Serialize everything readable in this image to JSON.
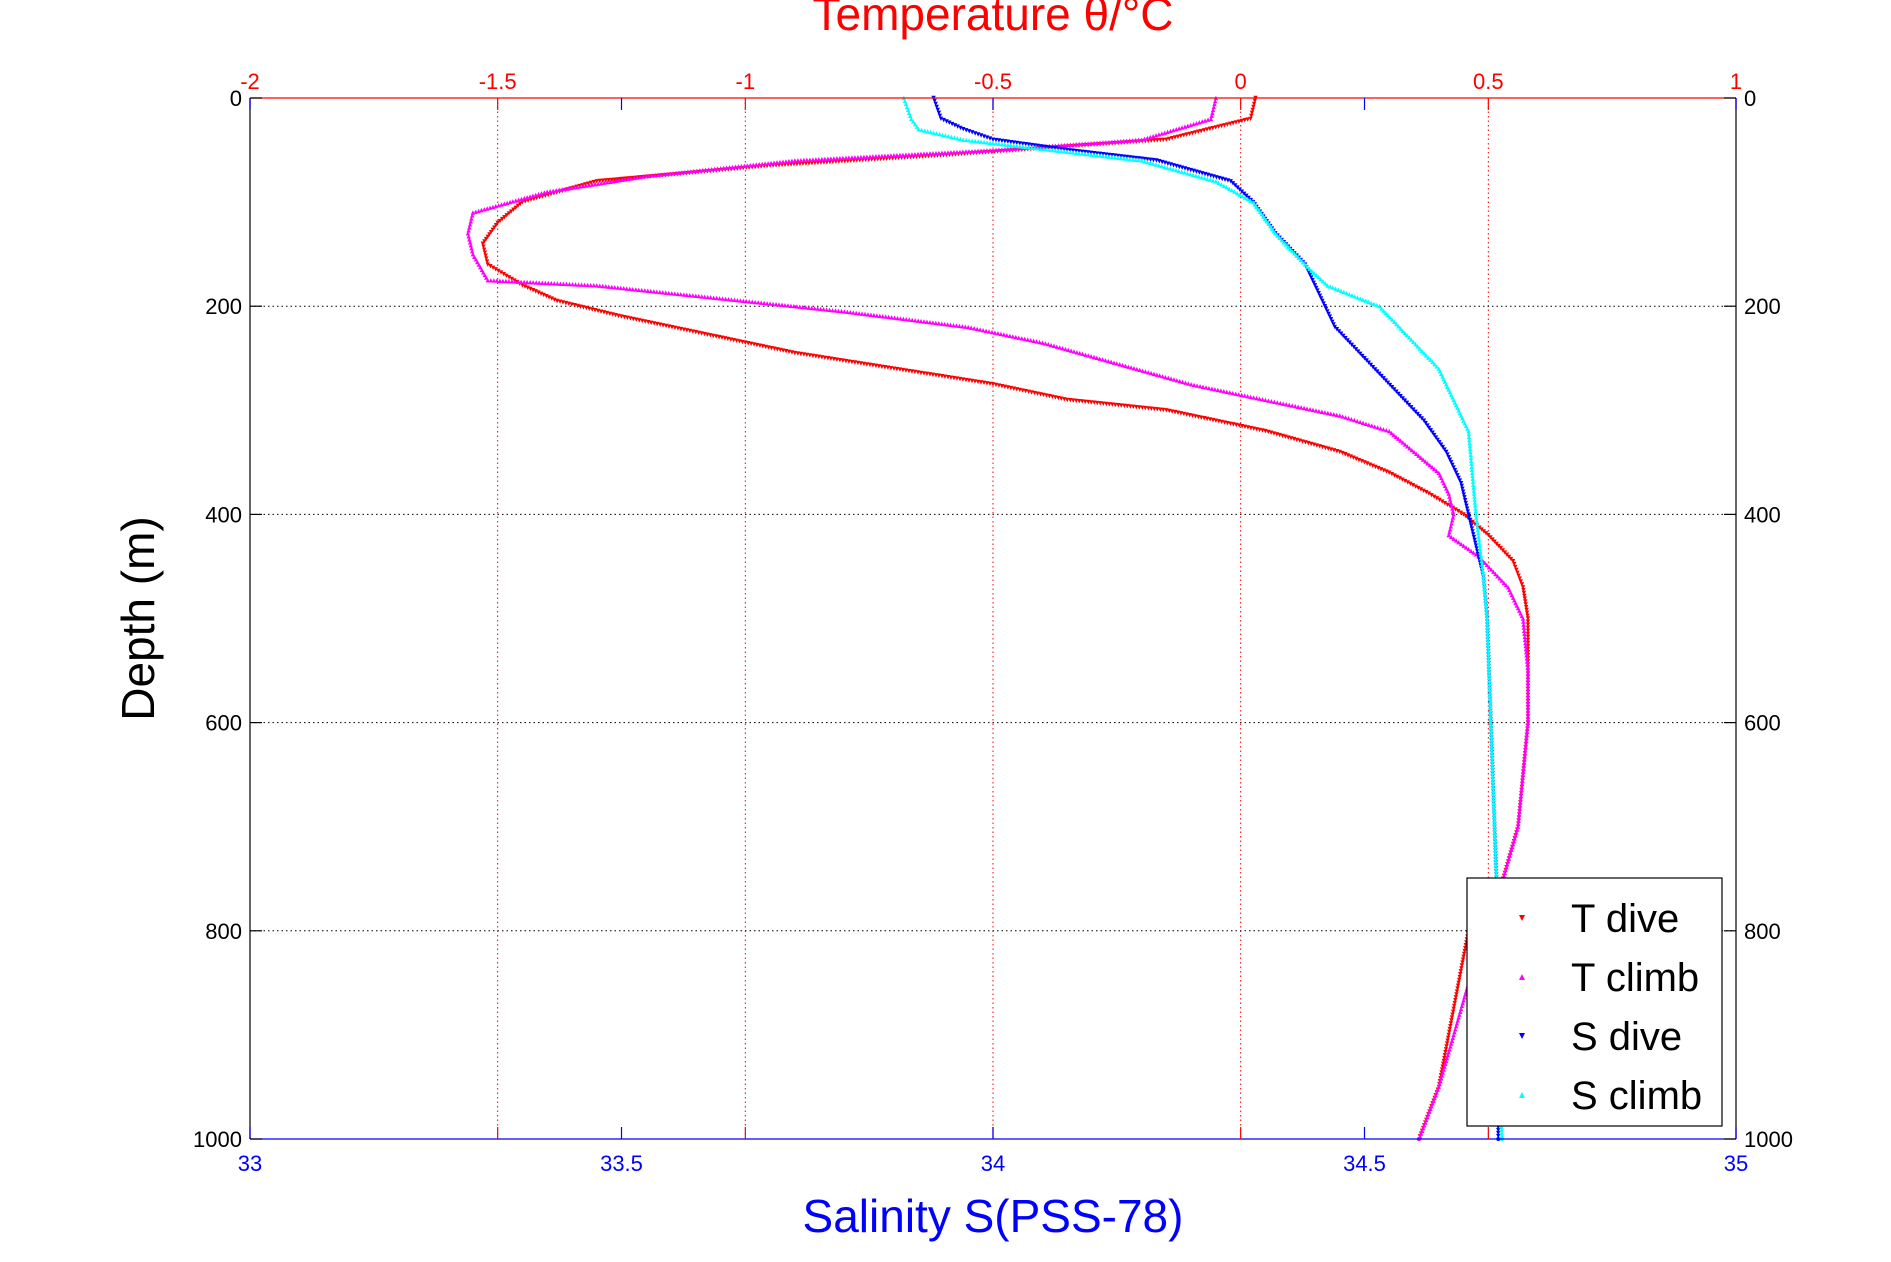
{
  "chart_data": {
    "type": "scatter",
    "title": "Temperature θ/°C",
    "xlabel": "Salinity S(PSS-78)",
    "ylabel": "Depth (m)",
    "x_top": {
      "label": "Temperature θ/°C",
      "lim": [
        -2,
        1
      ],
      "ticks": [
        -2,
        -1.5,
        -1,
        -0.5,
        0,
        0.5,
        1
      ],
      "tick_labels": [
        "-2",
        "-1.5",
        "-1",
        "-0.5",
        "0",
        "0.5",
        "1"
      ],
      "color": "#ff0000"
    },
    "x_bottom": {
      "label": "Salinity S(PSS-78)",
      "lim": [
        33,
        35
      ],
      "ticks": [
        33,
        33.5,
        34,
        34.5,
        35
      ],
      "tick_labels": [
        "33",
        "33.5",
        "34",
        "34.5",
        "35"
      ],
      "color": "#0000ff"
    },
    "y": {
      "lim": [
        0,
        1000
      ],
      "reversed": true,
      "ticks": [
        0,
        200,
        400,
        600,
        800,
        1000
      ],
      "tick_labels": [
        "0",
        "200",
        "400",
        "600",
        "800",
        "1000"
      ]
    },
    "grid": true,
    "legend": {
      "position": "bottom-right",
      "entries": [
        "T dive",
        "T climb",
        "S dive",
        "S climb"
      ]
    },
    "series": [
      {
        "name": "T dive",
        "axis": "top",
        "color": "#ff0000",
        "marker": "triangle-down",
        "points": [
          [
            0.03,
            0
          ],
          [
            0.02,
            20
          ],
          [
            -0.15,
            40
          ],
          [
            -0.6,
            55
          ],
          [
            -0.95,
            65
          ],
          [
            -1.3,
            80
          ],
          [
            -1.45,
            100
          ],
          [
            -1.5,
            120
          ],
          [
            -1.53,
            140
          ],
          [
            -1.52,
            160
          ],
          [
            -1.45,
            180
          ],
          [
            -1.38,
            195
          ],
          [
            -1.25,
            210
          ],
          [
            -1.1,
            225
          ],
          [
            -0.9,
            245
          ],
          [
            -0.7,
            260
          ],
          [
            -0.5,
            275
          ],
          [
            -0.35,
            290
          ],
          [
            -0.15,
            300
          ],
          [
            0.05,
            320
          ],
          [
            0.2,
            340
          ],
          [
            0.3,
            360
          ],
          [
            0.38,
            380
          ],
          [
            0.45,
            400
          ],
          [
            0.5,
            420
          ],
          [
            0.55,
            445
          ],
          [
            0.57,
            470
          ],
          [
            0.58,
            500
          ],
          [
            0.58,
            550
          ],
          [
            0.58,
            600
          ],
          [
            0.57,
            650
          ],
          [
            0.56,
            700
          ],
          [
            0.53,
            750
          ],
          [
            0.46,
            800
          ],
          [
            0.44,
            850
          ],
          [
            0.42,
            900
          ],
          [
            0.4,
            950
          ],
          [
            0.36,
            1000
          ]
        ]
      },
      {
        "name": "T climb",
        "axis": "top",
        "color": "#ff00ff",
        "marker": "triangle-up",
        "points": [
          [
            -0.05,
            0
          ],
          [
            -0.06,
            20
          ],
          [
            -0.2,
            40
          ],
          [
            -0.5,
            50
          ],
          [
            -0.9,
            60
          ],
          [
            -1.2,
            75
          ],
          [
            -1.4,
            90
          ],
          [
            -1.55,
            110
          ],
          [
            -1.56,
            130
          ],
          [
            -1.55,
            150
          ],
          [
            -1.52,
            175
          ],
          [
            -1.3,
            180
          ],
          [
            -1.1,
            190
          ],
          [
            -0.8,
            205
          ],
          [
            -0.55,
            220
          ],
          [
            -0.4,
            235
          ],
          [
            -0.25,
            255
          ],
          [
            -0.1,
            275
          ],
          [
            0.05,
            290
          ],
          [
            0.2,
            305
          ],
          [
            0.3,
            320
          ],
          [
            0.35,
            340
          ],
          [
            0.4,
            360
          ],
          [
            0.42,
            380
          ],
          [
            0.43,
            400
          ],
          [
            0.42,
            420
          ],
          [
            0.48,
            440
          ],
          [
            0.54,
            470
          ],
          [
            0.57,
            500
          ],
          [
            0.58,
            550
          ],
          [
            0.58,
            600
          ],
          [
            0.57,
            650
          ],
          [
            0.56,
            700
          ],
          [
            0.53,
            750
          ],
          [
            0.5,
            800
          ],
          [
            0.46,
            850
          ],
          [
            0.43,
            900
          ],
          [
            0.4,
            950
          ],
          [
            0.36,
            1000
          ]
        ]
      },
      {
        "name": "S dive",
        "axis": "bottom",
        "color": "#0000ff",
        "marker": "triangle-down",
        "points": [
          [
            33.92,
            0
          ],
          [
            33.93,
            20
          ],
          [
            33.96,
            30
          ],
          [
            34,
            40
          ],
          [
            34.1,
            50
          ],
          [
            34.22,
            60
          ],
          [
            34.27,
            70
          ],
          [
            34.32,
            80
          ],
          [
            34.35,
            100
          ],
          [
            34.38,
            130
          ],
          [
            34.42,
            160
          ],
          [
            34.44,
            190
          ],
          [
            34.46,
            220
          ],
          [
            34.5,
            250
          ],
          [
            34.54,
            280
          ],
          [
            34.58,
            310
          ],
          [
            34.61,
            340
          ],
          [
            34.63,
            370
          ],
          [
            34.64,
            400
          ],
          [
            34.65,
            430
          ],
          [
            34.66,
            460
          ],
          [
            34.665,
            500
          ],
          [
            34.67,
            600
          ],
          [
            34.675,
            700
          ],
          [
            34.68,
            800
          ],
          [
            34.68,
            900
          ],
          [
            34.68,
            1000
          ]
        ]
      },
      {
        "name": "S climb",
        "axis": "bottom",
        "color": "#00ffff",
        "marker": "triangle-up",
        "points": [
          [
            33.88,
            0
          ],
          [
            33.89,
            20
          ],
          [
            33.9,
            30
          ],
          [
            33.96,
            40
          ],
          [
            34.08,
            50
          ],
          [
            34.2,
            60
          ],
          [
            34.25,
            70
          ],
          [
            34.3,
            80
          ],
          [
            34.35,
            100
          ],
          [
            34.38,
            130
          ],
          [
            34.42,
            160
          ],
          [
            34.45,
            180
          ],
          [
            34.52,
            200
          ],
          [
            34.56,
            230
          ],
          [
            34.6,
            260
          ],
          [
            34.62,
            290
          ],
          [
            34.64,
            320
          ],
          [
            34.645,
            360
          ],
          [
            34.65,
            400
          ],
          [
            34.655,
            430
          ],
          [
            34.66,
            460
          ],
          [
            34.665,
            500
          ],
          [
            34.67,
            600
          ],
          [
            34.675,
            700
          ],
          [
            34.68,
            800
          ],
          [
            34.68,
            900
          ],
          [
            34.685,
            1000
          ]
        ]
      }
    ]
  }
}
